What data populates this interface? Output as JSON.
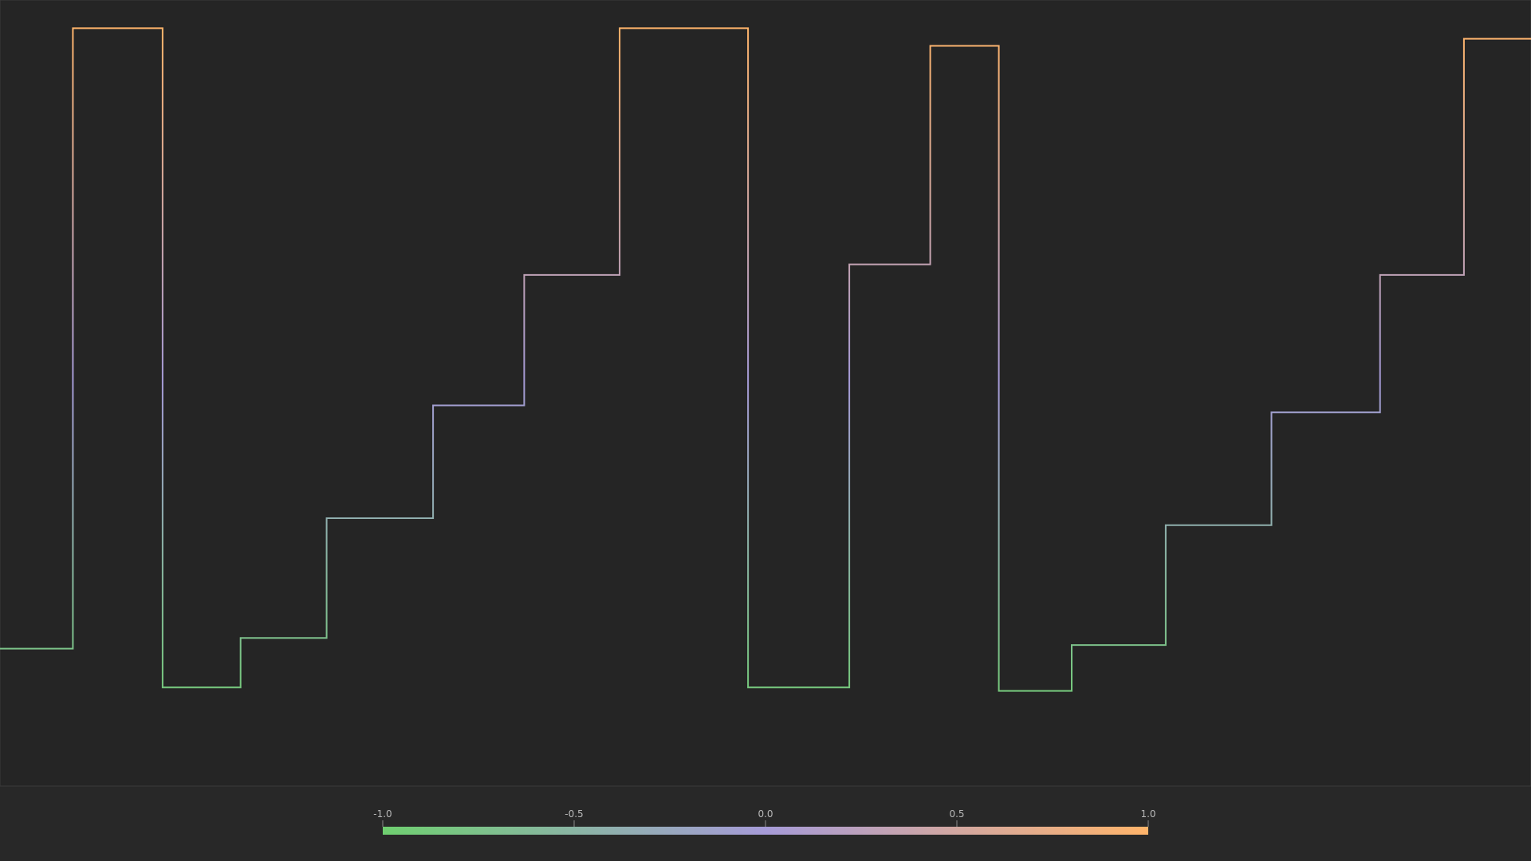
{
  "colors": {
    "background": "#282828",
    "plot_background": "#252525",
    "frame": "#3a3a3a",
    "tick_text": "#b8b8b8",
    "tick_mark": "#8a8a8a",
    "gradient_low": "#6fcf70",
    "gradient_mid": "#a69bd8",
    "gradient_high": "#ffb46a"
  },
  "chart_data": {
    "type": "line",
    "step": "post",
    "title": "",
    "xlabel": "",
    "ylabel": "",
    "grid": false,
    "legend": "none",
    "xlim": [
      0,
      21
    ],
    "ylim": [
      -1.15,
      1.08
    ],
    "x": [
      0,
      1,
      2.23,
      3.3,
      4.48,
      5.94,
      7.19,
      8.5,
      10.26,
      11.65,
      12.76,
      13.7,
      14.7,
      15.99,
      17.44,
      18.93,
      20.08,
      21
    ],
    "y": [
      -0.76,
      1.0,
      -0.87,
      -0.73,
      -0.39,
      -0.07,
      0.3,
      1.0,
      -0.87,
      0.33,
      0.95,
      -0.88,
      -0.75,
      -0.41,
      -0.09,
      0.3,
      0.97,
      0.97
    ],
    "colorbar": {
      "colormap": "green-purple-orange",
      "range": [
        -1.0,
        1.0
      ],
      "ticks": [
        "-1.0",
        "-0.5",
        "0.0",
        "0.5",
        "1.0"
      ]
    }
  }
}
